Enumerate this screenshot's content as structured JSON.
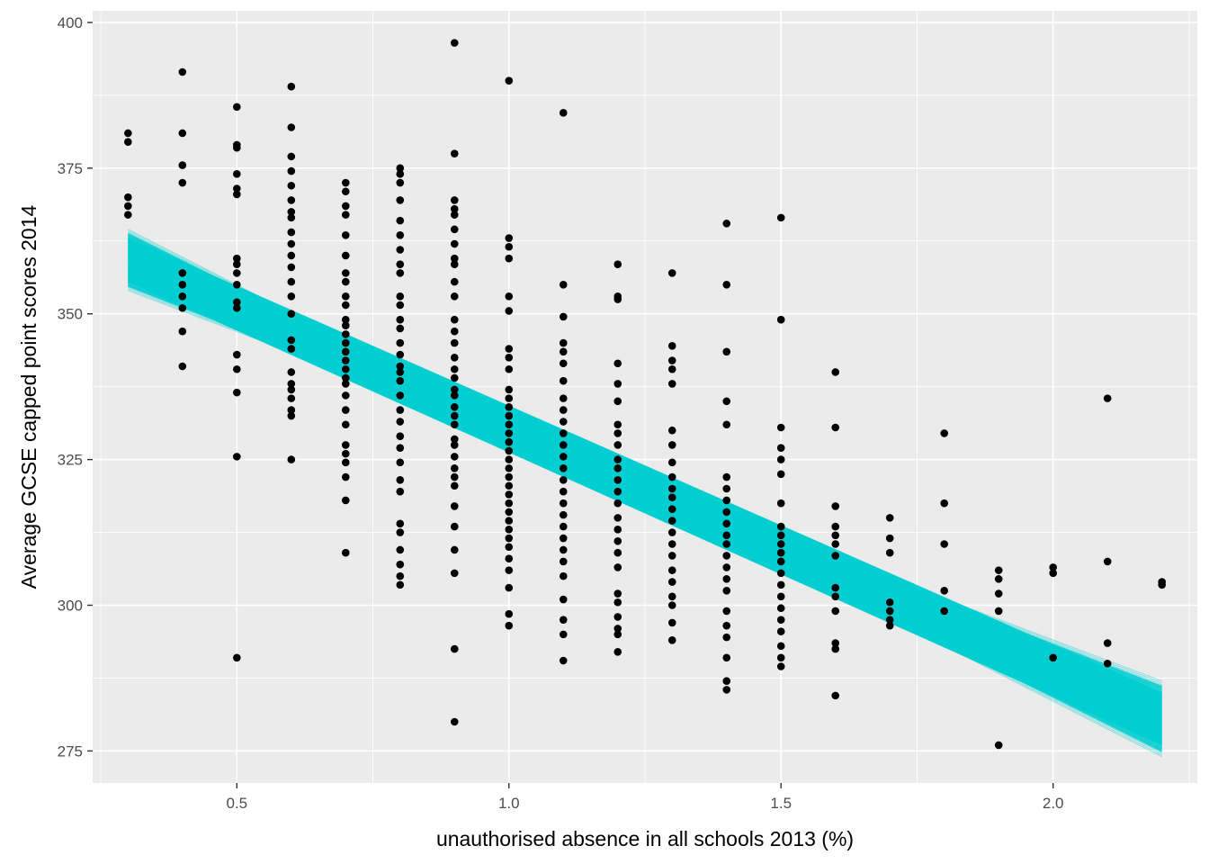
{
  "chart_data": {
    "type": "scatter",
    "title": "",
    "xlabel": "unauthorised absence in all schools 2013 (%)",
    "ylabel": "Average GCSE capped point scores 2014",
    "xlim": [
      0.235,
      2.265
    ],
    "ylim": [
      269.5,
      402
    ],
    "x_ticks": [
      0.5,
      1.0,
      1.5,
      2.0
    ],
    "x_tick_labels": [
      "0.5",
      "1.0",
      "1.5",
      "2.0"
    ],
    "y_ticks": [
      275,
      300,
      325,
      350,
      375,
      400
    ],
    "y_tick_labels": [
      "275",
      "300",
      "325",
      "350",
      "375",
      "400"
    ],
    "grid": true,
    "legend": "none",
    "colors": {
      "panel": "#EBEBEB",
      "grid": "#FFFFFF",
      "points": "#000000",
      "fit": "#00CED1"
    },
    "fit_band": {
      "x": [
        0.3,
        2.2
      ],
      "lower": [
        354.0,
        274.0
      ],
      "upper": [
        364.5,
        287.0
      ],
      "center": [
        359.5,
        280.5
      ]
    },
    "points": [
      [
        0.3,
        381
      ],
      [
        0.3,
        379.5
      ],
      [
        0.3,
        370
      ],
      [
        0.3,
        368.5
      ],
      [
        0.3,
        367
      ],
      [
        0.4,
        391.5
      ],
      [
        0.4,
        381
      ],
      [
        0.4,
        375.5
      ],
      [
        0.4,
        372.5
      ],
      [
        0.4,
        357
      ],
      [
        0.4,
        355
      ],
      [
        0.4,
        353
      ],
      [
        0.4,
        351
      ],
      [
        0.4,
        347
      ],
      [
        0.4,
        341
      ],
      [
        0.5,
        385.5
      ],
      [
        0.5,
        379
      ],
      [
        0.5,
        378.5
      ],
      [
        0.5,
        374
      ],
      [
        0.5,
        371.5
      ],
      [
        0.5,
        370.5
      ],
      [
        0.5,
        359.5
      ],
      [
        0.5,
        358.5
      ],
      [
        0.5,
        357
      ],
      [
        0.5,
        355
      ],
      [
        0.5,
        352
      ],
      [
        0.5,
        351
      ],
      [
        0.5,
        343
      ],
      [
        0.5,
        340.5
      ],
      [
        0.5,
        336.5
      ],
      [
        0.5,
        325.5
      ],
      [
        0.5,
        291
      ],
      [
        0.6,
        389
      ],
      [
        0.6,
        382
      ],
      [
        0.6,
        377
      ],
      [
        0.6,
        374.5
      ],
      [
        0.6,
        372
      ],
      [
        0.6,
        369.5
      ],
      [
        0.6,
        367.5
      ],
      [
        0.6,
        366.5
      ],
      [
        0.6,
        364
      ],
      [
        0.6,
        362
      ],
      [
        0.6,
        360
      ],
      [
        0.6,
        358
      ],
      [
        0.6,
        355.5
      ],
      [
        0.6,
        353
      ],
      [
        0.6,
        350
      ],
      [
        0.6,
        345.5
      ],
      [
        0.6,
        344
      ],
      [
        0.6,
        340
      ],
      [
        0.6,
        338
      ],
      [
        0.6,
        337
      ],
      [
        0.6,
        335.5
      ],
      [
        0.6,
        333.5
      ],
      [
        0.6,
        332.5
      ],
      [
        0.6,
        325
      ],
      [
        0.7,
        372.5
      ],
      [
        0.7,
        371
      ],
      [
        0.7,
        368.5
      ],
      [
        0.7,
        367
      ],
      [
        0.7,
        363.5
      ],
      [
        0.7,
        360
      ],
      [
        0.7,
        357
      ],
      [
        0.7,
        355.5
      ],
      [
        0.7,
        353
      ],
      [
        0.7,
        351.5
      ],
      [
        0.7,
        349
      ],
      [
        0.7,
        348
      ],
      [
        0.7,
        346.5
      ],
      [
        0.7,
        345
      ],
      [
        0.7,
        343.5
      ],
      [
        0.7,
        342
      ],
      [
        0.7,
        340.5
      ],
      [
        0.7,
        339
      ],
      [
        0.7,
        338
      ],
      [
        0.7,
        336
      ],
      [
        0.7,
        333.5
      ],
      [
        0.7,
        331
      ],
      [
        0.7,
        327.5
      ],
      [
        0.7,
        326
      ],
      [
        0.7,
        324.5
      ],
      [
        0.7,
        322
      ],
      [
        0.7,
        318
      ],
      [
        0.7,
        309
      ],
      [
        0.8,
        375
      ],
      [
        0.8,
        374
      ],
      [
        0.8,
        372.5
      ],
      [
        0.8,
        369.5
      ],
      [
        0.8,
        366
      ],
      [
        0.8,
        363.5
      ],
      [
        0.8,
        361
      ],
      [
        0.8,
        358.5
      ],
      [
        0.8,
        357
      ],
      [
        0.8,
        353
      ],
      [
        0.8,
        351.5
      ],
      [
        0.8,
        349
      ],
      [
        0.8,
        347.5
      ],
      [
        0.8,
        345
      ],
      [
        0.8,
        343
      ],
      [
        0.8,
        341
      ],
      [
        0.8,
        340
      ],
      [
        0.8,
        338.5
      ],
      [
        0.8,
        336
      ],
      [
        0.8,
        333.5
      ],
      [
        0.8,
        331.5
      ],
      [
        0.8,
        329
      ],
      [
        0.8,
        327
      ],
      [
        0.8,
        324.5
      ],
      [
        0.8,
        321.5
      ],
      [
        0.8,
        319.5
      ],
      [
        0.8,
        314
      ],
      [
        0.8,
        312.5
      ],
      [
        0.8,
        309.5
      ],
      [
        0.8,
        307
      ],
      [
        0.8,
        305
      ],
      [
        0.8,
        303.5
      ],
      [
        0.9,
        396.5
      ],
      [
        0.9,
        377.5
      ],
      [
        0.9,
        369.5
      ],
      [
        0.9,
        368
      ],
      [
        0.9,
        367
      ],
      [
        0.9,
        364.5
      ],
      [
        0.9,
        362
      ],
      [
        0.9,
        359.5
      ],
      [
        0.9,
        358.5
      ],
      [
        0.9,
        355.5
      ],
      [
        0.9,
        353
      ],
      [
        0.9,
        349
      ],
      [
        0.9,
        347
      ],
      [
        0.9,
        345
      ],
      [
        0.9,
        342.5
      ],
      [
        0.9,
        340.5
      ],
      [
        0.9,
        339
      ],
      [
        0.9,
        337
      ],
      [
        0.9,
        336
      ],
      [
        0.9,
        334
      ],
      [
        0.9,
        332.5
      ],
      [
        0.9,
        331
      ],
      [
        0.9,
        328.5
      ],
      [
        0.9,
        327.5
      ],
      [
        0.9,
        325.5
      ],
      [
        0.9,
        323.5
      ],
      [
        0.9,
        322
      ],
      [
        0.9,
        320.5
      ],
      [
        0.9,
        317
      ],
      [
        0.9,
        313.5
      ],
      [
        0.9,
        309.5
      ],
      [
        0.9,
        305.5
      ],
      [
        0.9,
        292.5
      ],
      [
        0.9,
        280
      ],
      [
        1.0,
        390
      ],
      [
        1.0,
        363
      ],
      [
        1.0,
        361.5
      ],
      [
        1.0,
        359.5
      ],
      [
        1.0,
        353
      ],
      [
        1.0,
        350.5
      ],
      [
        1.0,
        344
      ],
      [
        1.0,
        342.5
      ],
      [
        1.0,
        340.5
      ],
      [
        1.0,
        337
      ],
      [
        1.0,
        335.5
      ],
      [
        1.0,
        334
      ],
      [
        1.0,
        332.5
      ],
      [
        1.0,
        331
      ],
      [
        1.0,
        329.5
      ],
      [
        1.0,
        328
      ],
      [
        1.0,
        326.5
      ],
      [
        1.0,
        325
      ],
      [
        1.0,
        323.5
      ],
      [
        1.0,
        322
      ],
      [
        1.0,
        320.5
      ],
      [
        1.0,
        319
      ],
      [
        1.0,
        317.5
      ],
      [
        1.0,
        316
      ],
      [
        1.0,
        314.5
      ],
      [
        1.0,
        313
      ],
      [
        1.0,
        311.5
      ],
      [
        1.0,
        310
      ],
      [
        1.0,
        308
      ],
      [
        1.0,
        306
      ],
      [
        1.0,
        303
      ],
      [
        1.0,
        298.5
      ],
      [
        1.0,
        296.5
      ],
      [
        1.1,
        384.5
      ],
      [
        1.1,
        355
      ],
      [
        1.1,
        349.5
      ],
      [
        1.1,
        345
      ],
      [
        1.1,
        343.5
      ],
      [
        1.1,
        341.5
      ],
      [
        1.1,
        338.5
      ],
      [
        1.1,
        335.5
      ],
      [
        1.1,
        333.5
      ],
      [
        1.1,
        331.5
      ],
      [
        1.1,
        329.5
      ],
      [
        1.1,
        327.5
      ],
      [
        1.1,
        325.5
      ],
      [
        1.1,
        323.5
      ],
      [
        1.1,
        321.5
      ],
      [
        1.1,
        319.5
      ],
      [
        1.1,
        317.5
      ],
      [
        1.1,
        315.5
      ],
      [
        1.1,
        313.5
      ],
      [
        1.1,
        311.5
      ],
      [
        1.1,
        309.5
      ],
      [
        1.1,
        307.5
      ],
      [
        1.1,
        305
      ],
      [
        1.1,
        301
      ],
      [
        1.1,
        297.5
      ],
      [
        1.1,
        295
      ],
      [
        1.1,
        290.5
      ],
      [
        1.2,
        358.5
      ],
      [
        1.2,
        353
      ],
      [
        1.2,
        352.5
      ],
      [
        1.2,
        341.5
      ],
      [
        1.2,
        338
      ],
      [
        1.2,
        335
      ],
      [
        1.2,
        331
      ],
      [
        1.2,
        329.5
      ],
      [
        1.2,
        327.5
      ],
      [
        1.2,
        325
      ],
      [
        1.2,
        323.5
      ],
      [
        1.2,
        321.5
      ],
      [
        1.2,
        319.5
      ],
      [
        1.2,
        317.5
      ],
      [
        1.2,
        315
      ],
      [
        1.2,
        313
      ],
      [
        1.2,
        311
      ],
      [
        1.2,
        309
      ],
      [
        1.2,
        306.5
      ],
      [
        1.2,
        302
      ],
      [
        1.2,
        300.5
      ],
      [
        1.2,
        298
      ],
      [
        1.2,
        296
      ],
      [
        1.2,
        295
      ],
      [
        1.2,
        292
      ],
      [
        1.3,
        357
      ],
      [
        1.3,
        344.5
      ],
      [
        1.3,
        342
      ],
      [
        1.3,
        340.5
      ],
      [
        1.3,
        338
      ],
      [
        1.3,
        330
      ],
      [
        1.3,
        327.5
      ],
      [
        1.3,
        324.5
      ],
      [
        1.3,
        322
      ],
      [
        1.3,
        320
      ],
      [
        1.3,
        318.5
      ],
      [
        1.3,
        316.5
      ],
      [
        1.3,
        314.5
      ],
      [
        1.3,
        312.5
      ],
      [
        1.3,
        310.5
      ],
      [
        1.3,
        308.5
      ],
      [
        1.3,
        306
      ],
      [
        1.3,
        304
      ],
      [
        1.3,
        301.5
      ],
      [
        1.3,
        300
      ],
      [
        1.3,
        297
      ],
      [
        1.3,
        294
      ],
      [
        1.4,
        365.5
      ],
      [
        1.4,
        355
      ],
      [
        1.4,
        343.5
      ],
      [
        1.4,
        335
      ],
      [
        1.4,
        331
      ],
      [
        1.4,
        322
      ],
      [
        1.4,
        320
      ],
      [
        1.4,
        318
      ],
      [
        1.4,
        316
      ],
      [
        1.4,
        314
      ],
      [
        1.4,
        312
      ],
      [
        1.4,
        310.5
      ],
      [
        1.4,
        308.5
      ],
      [
        1.4,
        306.5
      ],
      [
        1.4,
        304.5
      ],
      [
        1.4,
        302.5
      ],
      [
        1.4,
        299
      ],
      [
        1.4,
        296.5
      ],
      [
        1.4,
        294.5
      ],
      [
        1.4,
        291
      ],
      [
        1.4,
        287
      ],
      [
        1.4,
        285.5
      ],
      [
        1.5,
        366.5
      ],
      [
        1.5,
        349
      ],
      [
        1.5,
        330.5
      ],
      [
        1.5,
        327
      ],
      [
        1.5,
        325
      ],
      [
        1.5,
        322.5
      ],
      [
        1.5,
        317.5
      ],
      [
        1.5,
        313.5
      ],
      [
        1.5,
        312
      ],
      [
        1.5,
        310.5
      ],
      [
        1.5,
        309
      ],
      [
        1.5,
        307.5
      ],
      [
        1.5,
        305.5
      ],
      [
        1.5,
        303.5
      ],
      [
        1.5,
        301.5
      ],
      [
        1.5,
        299.5
      ],
      [
        1.5,
        297.5
      ],
      [
        1.5,
        295.5
      ],
      [
        1.5,
        293
      ],
      [
        1.5,
        291
      ],
      [
        1.5,
        289.5
      ],
      [
        1.6,
        340
      ],
      [
        1.6,
        330.5
      ],
      [
        1.6,
        317
      ],
      [
        1.6,
        313.5
      ],
      [
        1.6,
        312
      ],
      [
        1.6,
        310.5
      ],
      [
        1.6,
        308.5
      ],
      [
        1.6,
        303
      ],
      [
        1.6,
        301.5
      ],
      [
        1.6,
        299
      ],
      [
        1.6,
        293.5
      ],
      [
        1.6,
        292.5
      ],
      [
        1.6,
        284.5
      ],
      [
        1.7,
        315
      ],
      [
        1.7,
        311.5
      ],
      [
        1.7,
        309
      ],
      [
        1.7,
        300.5
      ],
      [
        1.7,
        299
      ],
      [
        1.7,
        297.5
      ],
      [
        1.7,
        296.5
      ],
      [
        1.8,
        329.5
      ],
      [
        1.8,
        317.5
      ],
      [
        1.8,
        310.5
      ],
      [
        1.8,
        302.5
      ],
      [
        1.8,
        299
      ],
      [
        1.9,
        306
      ],
      [
        1.9,
        304.5
      ],
      [
        1.9,
        302
      ],
      [
        1.9,
        299
      ],
      [
        1.9,
        276
      ],
      [
        2.0,
        306.5
      ],
      [
        2.0,
        305.5
      ],
      [
        2.0,
        291
      ],
      [
        2.1,
        335.5
      ],
      [
        2.1,
        307.5
      ],
      [
        2.1,
        293.5
      ],
      [
        2.1,
        290
      ],
      [
        2.2,
        304
      ],
      [
        2.2,
        303.5
      ]
    ]
  }
}
